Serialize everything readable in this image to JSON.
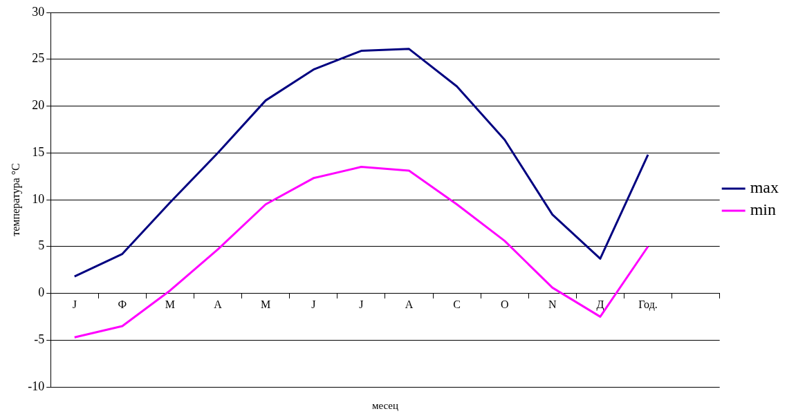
{
  "chart_data": {
    "type": "line",
    "xlabel": "месец",
    "ylabel": "температура °C",
    "categories": [
      "J",
      "Ф",
      "M",
      "A",
      "M",
      "J",
      "J",
      "A",
      "C",
      "O",
      "N",
      "Д",
      "Год.",
      null
    ],
    "series": [
      {
        "name": "max",
        "color": "#000080",
        "values": [
          1.8,
          4.2,
          9.7,
          15.0,
          20.6,
          23.9,
          25.9,
          26.1,
          22.1,
          16.4,
          8.4,
          3.7,
          14.8,
          null
        ]
      },
      {
        "name": "min",
        "color": "#ff00ff",
        "values": [
          -4.7,
          -3.5,
          0.3,
          4.7,
          9.5,
          12.3,
          13.5,
          13.1,
          9.5,
          5.6,
          0.6,
          -2.5,
          5.0,
          null
        ]
      }
    ],
    "ylim": [
      -10,
      30
    ],
    "yticks": [
      -10,
      -5,
      0,
      5,
      10,
      15,
      20,
      25,
      30
    ],
    "grid": "y",
    "legend": "right",
    "marker": "none",
    "line_style": "solid"
  }
}
